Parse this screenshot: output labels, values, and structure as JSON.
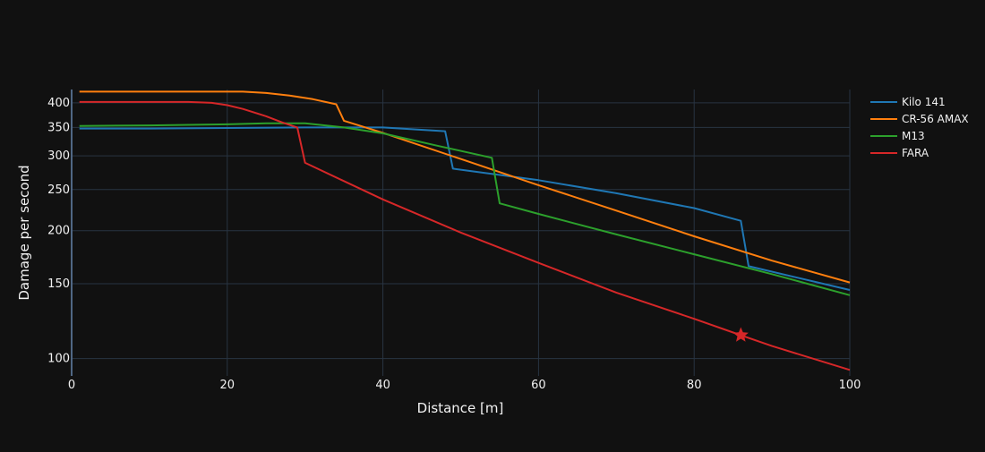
{
  "chart_data": {
    "type": "line",
    "xlabel": "Distance [m]",
    "ylabel": "Damage per second",
    "xlim": [
      0,
      100
    ],
    "ylim": [
      91,
      430
    ],
    "yscale": "log",
    "grid": true,
    "legend_position": "top-right outside",
    "x_ticks": [
      0,
      20,
      40,
      60,
      80,
      100
    ],
    "y_ticks": [
      100,
      150,
      200,
      250,
      300,
      350,
      400
    ],
    "series": [
      {
        "name": "Kilo 141",
        "color": "#1f77b4",
        "x": [
          1,
          10,
          20,
          30,
          40,
          48,
          49,
          60,
          70,
          80,
          86,
          87,
          100
        ],
        "y": [
          348,
          348,
          349,
          350,
          350,
          343,
          280,
          263,
          245,
          226,
          211,
          165,
          145
        ]
      },
      {
        "name": "CR-56 AMAX",
        "color": "#ff7f0e",
        "x": [
          1,
          10,
          20,
          22,
          25,
          28,
          31,
          34,
          35,
          40,
          50,
          60,
          70,
          80,
          90,
          100
        ],
        "y": [
          425,
          425,
          425,
          425,
          422,
          416,
          408,
          397,
          363,
          340,
          295,
          256,
          223,
          194,
          170,
          151
        ]
      },
      {
        "name": "M13",
        "color": "#2ca02c",
        "x": [
          1,
          10,
          20,
          25,
          30,
          35,
          40,
          47,
          54,
          55,
          60,
          70,
          80,
          90,
          100
        ],
        "y": [
          353,
          354,
          356,
          358,
          358,
          350,
          339,
          317,
          297,
          232,
          219,
          196,
          176,
          158,
          141
        ]
      },
      {
        "name": "FARA",
        "color": "#d62728",
        "x": [
          1,
          10,
          15,
          18,
          20,
          22,
          25,
          27,
          29,
          30,
          40,
          50,
          60,
          70,
          80,
          86,
          90,
          100
        ],
        "y": [
          402,
          402,
          402,
          400,
          395,
          387,
          372,
          360,
          350,
          289,
          237,
          198,
          168,
          143,
          124,
          113.5,
          107,
          94
        ]
      }
    ],
    "annotations": [
      {
        "type": "star-marker",
        "series": "FARA",
        "x": 86,
        "y": 113.5,
        "color": "#d62728"
      }
    ]
  }
}
